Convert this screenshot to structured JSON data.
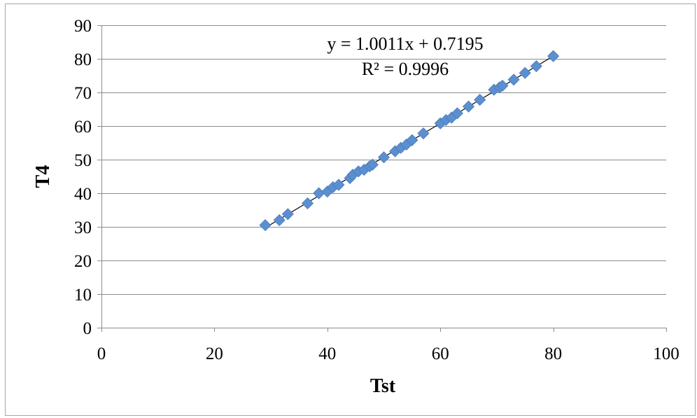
{
  "chart_data": {
    "type": "scatter",
    "title": "",
    "xlabel": "Tst",
    "ylabel": "T4",
    "xlim": [
      0,
      100
    ],
    "ylim": [
      0,
      90
    ],
    "x_ticks": [
      0,
      20,
      40,
      60,
      80,
      100
    ],
    "y_ticks": [
      0,
      10,
      20,
      30,
      40,
      50,
      60,
      70,
      80,
      90
    ],
    "grid": "horizontal",
    "legend": "none",
    "series": [
      {
        "color": "#5b8fd0",
        "marker": "diamond",
        "points": [
          [
            29.0,
            30.5
          ],
          [
            31.5,
            32.0
          ],
          [
            33.0,
            33.8
          ],
          [
            36.5,
            37.0
          ],
          [
            38.5,
            40.0
          ],
          [
            40.0,
            40.5
          ],
          [
            41.0,
            41.8
          ],
          [
            42.0,
            42.5
          ],
          [
            44.0,
            44.5
          ],
          [
            44.5,
            45.5
          ],
          [
            45.5,
            46.5
          ],
          [
            46.5,
            47.0
          ],
          [
            47.5,
            48.0
          ],
          [
            48.0,
            48.5
          ],
          [
            50.0,
            50.7
          ],
          [
            52.0,
            52.5
          ],
          [
            53.0,
            53.5
          ],
          [
            54.0,
            54.5
          ],
          [
            55.0,
            55.8
          ],
          [
            57.0,
            57.8
          ],
          [
            60.0,
            60.8
          ],
          [
            61.0,
            61.8
          ],
          [
            62.0,
            62.5
          ],
          [
            63.0,
            63.8
          ],
          [
            65.0,
            65.8
          ],
          [
            67.0,
            67.8
          ],
          [
            69.5,
            70.8
          ],
          [
            70.5,
            71.5
          ],
          [
            71.0,
            72.0
          ],
          [
            73.0,
            73.8
          ],
          [
            75.0,
            75.8
          ],
          [
            77.0,
            77.8
          ],
          [
            80.0,
            80.8
          ]
        ]
      }
    ],
    "trendline": {
      "slope": 1.0011,
      "intercept": 0.7195,
      "x_range": [
        29.0,
        80.0
      ],
      "color": "#000000"
    },
    "annotations": {
      "equation": "y = 1.0011x + 0.7195",
      "r_squared": "R² = 0.9996"
    }
  }
}
